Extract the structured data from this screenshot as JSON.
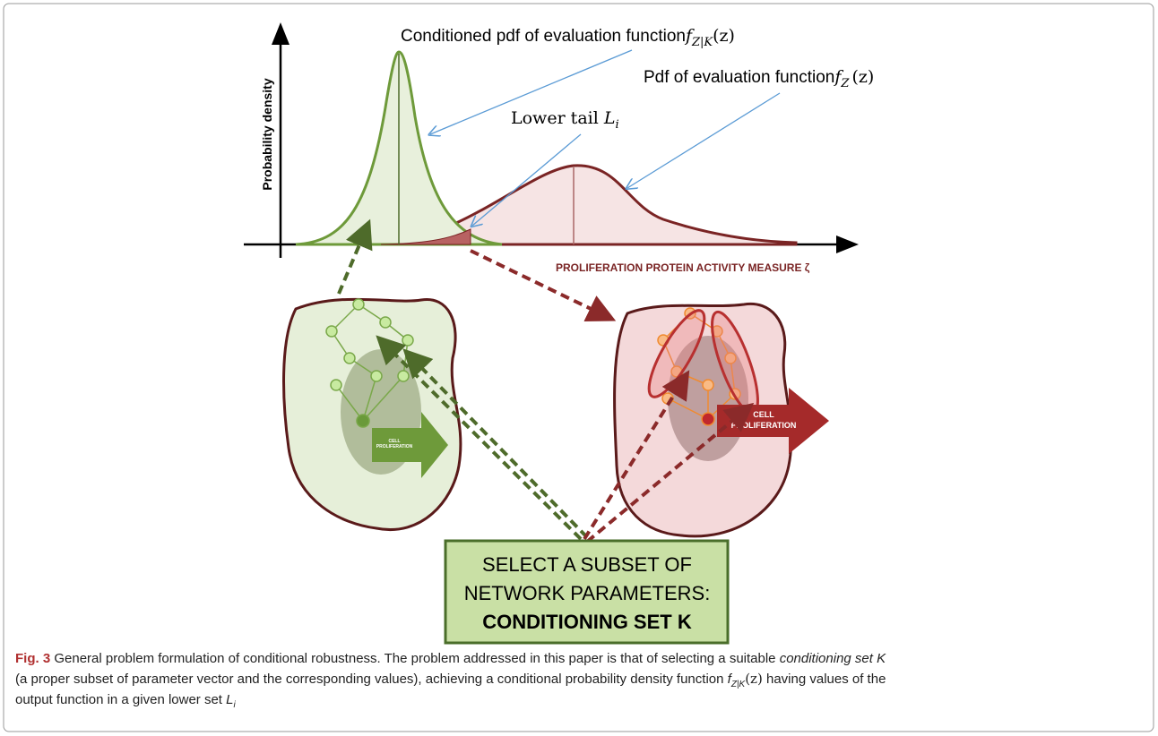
{
  "figure": {
    "axis_label_y": "Probability density",
    "axis_label_x": "PROLIFERATION PROTEIN ACTIVITY MEASURE ζ",
    "annotations": {
      "conditioned_pdf": {
        "text": "Conditioned pdf of evaluation function",
        "f": "f",
        "sub": "Z|K",
        "arg": "(z)"
      },
      "pdf": {
        "text": "Pdf of evaluation function",
        "f": "f",
        "sub": "Z",
        "arg": "(z)"
      },
      "lower_tail": {
        "text": "Lower tail",
        "L": "L",
        "sub": "i"
      }
    },
    "cell_labels": {
      "left": [
        "CELL",
        "PROLIFERATION"
      ],
      "right": [
        "CELL",
        "PROLIFERATION"
      ]
    },
    "box": {
      "lines": [
        "SELECT A SUBSET OF",
        "NETWORK PARAMETERS:"
      ],
      "bold": "CONDITIONING SET K"
    }
  },
  "caption": {
    "label": "Fig. 3",
    "line1": " General problem formulation of conditional robustness. The problem addressed in this paper is that of selecting a suitable ",
    "italic1": "conditioning set K",
    "line2": "(a proper subset of parameter vector and the corresponding values), achieving a conditional probability density function ",
    "f": "f",
    "sub": "Z|K",
    "arg": "(z)",
    "line2b": " having values of the",
    "line3": "output function in a given lower set ",
    "L": "L",
    "Lsub": "i"
  }
}
